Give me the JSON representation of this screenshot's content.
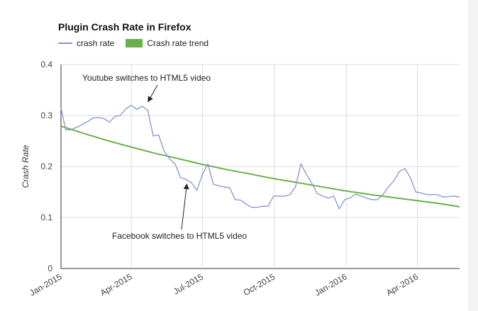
{
  "chart_data": {
    "type": "line",
    "title": "Plugin Crash Rate in Firefox",
    "ylabel": "Crash Rate",
    "xlabel": "",
    "ylim": [
      0,
      0.4
    ],
    "yticks": [
      "0",
      "0.1",
      "0.2",
      "0.3",
      "0.4"
    ],
    "ytick_values": [
      0,
      0.1,
      0.2,
      0.3,
      0.4
    ],
    "xlim": [
      "2015-01-01",
      "2016-05-25"
    ],
    "xticks": [
      {
        "label": "Jan-2015",
        "date": "2015-01-01"
      },
      {
        "label": "Apr-2015",
        "date": "2015-04-01"
      },
      {
        "label": "Jul-2015",
        "date": "2015-07-01"
      },
      {
        "label": "Oct-2015",
        "date": "2015-10-01"
      },
      {
        "label": "Jan-2016",
        "date": "2016-01-01"
      },
      {
        "label": "Apr-2016",
        "date": "2016-04-01"
      }
    ],
    "grid": true,
    "legend_position": "top-left",
    "series": [
      {
        "name": "crash rate",
        "color": "#7f95d8",
        "style": "line",
        "x": [
          "2015-01-01",
          "2015-01-07",
          "2015-01-14",
          "2015-01-21",
          "2015-01-28",
          "2015-02-04",
          "2015-02-11",
          "2015-02-18",
          "2015-02-25",
          "2015-03-04",
          "2015-03-11",
          "2015-03-18",
          "2015-03-25",
          "2015-04-01",
          "2015-04-08",
          "2015-04-15",
          "2015-04-22",
          "2015-04-29",
          "2015-05-06",
          "2015-05-13",
          "2015-05-20",
          "2015-05-27",
          "2015-06-03",
          "2015-06-10",
          "2015-06-17",
          "2015-06-24",
          "2015-07-01",
          "2015-07-08",
          "2015-07-15",
          "2015-07-22",
          "2015-07-29",
          "2015-08-05",
          "2015-08-12",
          "2015-08-19",
          "2015-08-26",
          "2015-09-02",
          "2015-09-09",
          "2015-09-16",
          "2015-09-23",
          "2015-09-30",
          "2015-10-07",
          "2015-10-14",
          "2015-10-21",
          "2015-10-28",
          "2015-11-04",
          "2015-11-11",
          "2015-11-18",
          "2015-11-25",
          "2015-12-02",
          "2015-12-09",
          "2015-12-16",
          "2015-12-23",
          "2015-12-30",
          "2016-01-06",
          "2016-01-13",
          "2016-01-20",
          "2016-01-27",
          "2016-02-03",
          "2016-02-10",
          "2016-02-17",
          "2016-02-24",
          "2016-03-02",
          "2016-03-09",
          "2016-03-16",
          "2016-03-23",
          "2016-03-30",
          "2016-04-06",
          "2016-04-13",
          "2016-04-20",
          "2016-04-27",
          "2016-05-04",
          "2016-05-11",
          "2016-05-18",
          "2016-05-25"
        ],
        "y": [
          0.315,
          0.272,
          0.272,
          0.277,
          0.282,
          0.288,
          0.295,
          0.296,
          0.294,
          0.287,
          0.298,
          0.3,
          0.313,
          0.32,
          0.312,
          0.318,
          0.31,
          0.26,
          0.262,
          0.23,
          0.215,
          0.205,
          0.178,
          0.175,
          0.168,
          0.153,
          0.185,
          0.205,
          0.165,
          0.162,
          0.16,
          0.158,
          0.135,
          0.134,
          0.126,
          0.12,
          0.12,
          0.122,
          0.122,
          0.142,
          0.142,
          0.142,
          0.145,
          0.16,
          0.205,
          0.185,
          0.167,
          0.147,
          0.142,
          0.138,
          0.142,
          0.117,
          0.135,
          0.138,
          0.146,
          0.142,
          0.138,
          0.135,
          0.135,
          0.145,
          0.16,
          0.172,
          0.19,
          0.196,
          0.178,
          0.15,
          0.148,
          0.145,
          0.145,
          0.145,
          0.14,
          0.141,
          0.142,
          0.14
        ]
      },
      {
        "name": "Crash rate trend",
        "color": "#6ab04c",
        "style": "line-thick",
        "x": [
          "2015-01-01",
          "2015-02-01",
          "2015-03-01",
          "2015-04-01",
          "2015-05-01",
          "2015-06-01",
          "2015-07-01",
          "2015-08-01",
          "2015-09-01",
          "2015-10-01",
          "2015-11-01",
          "2015-12-01",
          "2016-01-01",
          "2016-02-01",
          "2016-03-01",
          "2016-04-01",
          "2016-05-01",
          "2016-05-25"
        ],
        "y": [
          0.279,
          0.264,
          0.251,
          0.238,
          0.226,
          0.215,
          0.204,
          0.194,
          0.185,
          0.176,
          0.168,
          0.16,
          0.152,
          0.145,
          0.139,
          0.133,
          0.127,
          0.121
        ]
      }
    ],
    "annotations": [
      {
        "text": "Youtube switches to HTML5 video",
        "target_date": "2015-04-22",
        "target_y": 0.32
      },
      {
        "text": "Facebook switches to HTML5 video",
        "target_date": "2015-06-10",
        "target_y": 0.175
      }
    ]
  }
}
